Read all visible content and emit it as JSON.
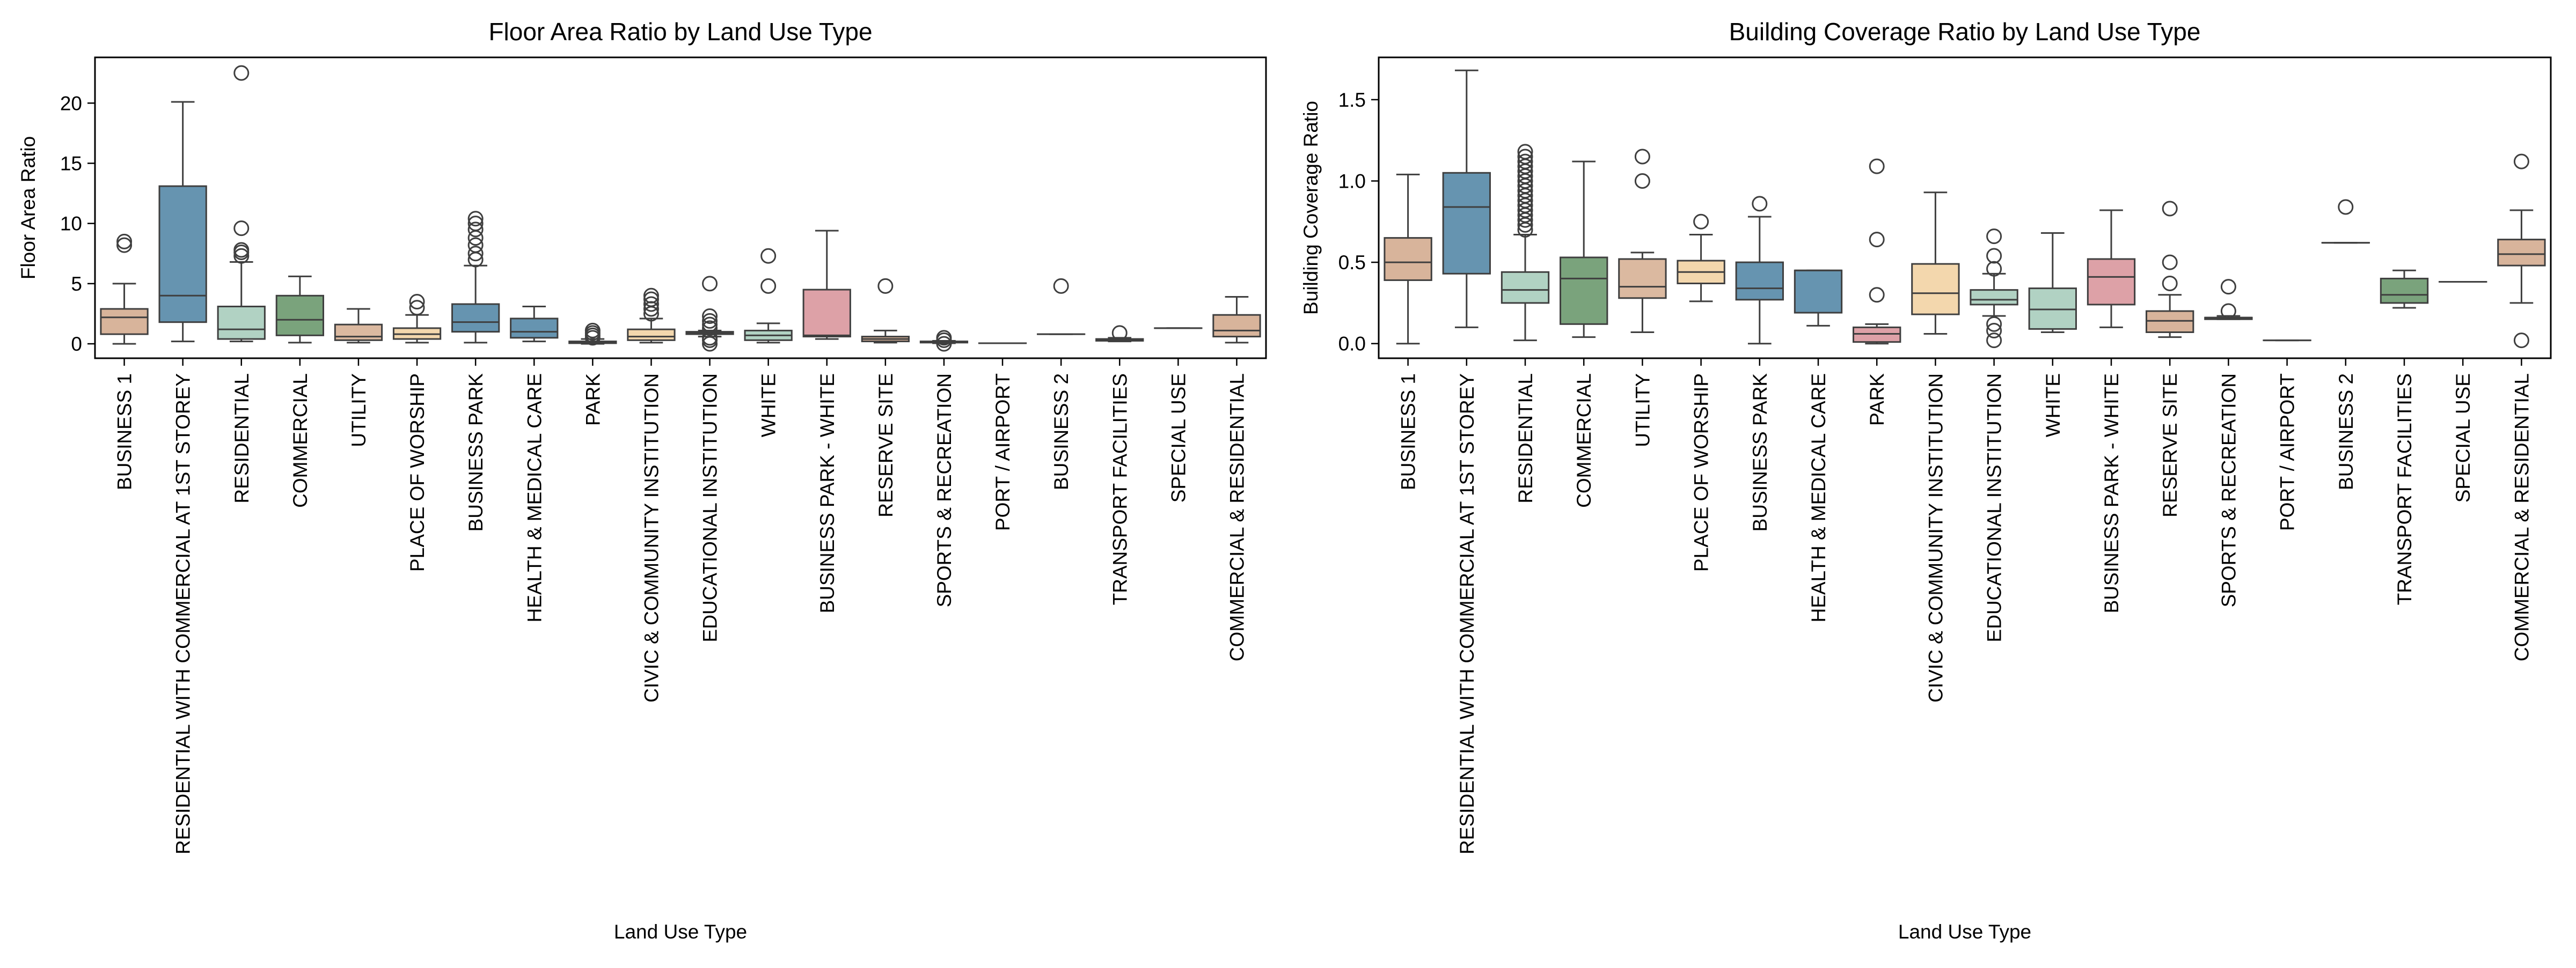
{
  "chart_data": [
    {
      "type": "box",
      "title": "Floor Area Ratio by Land Use Type",
      "xlabel": "Land Use Type",
      "ylabel": "Floor Area Ratio",
      "ylim": [
        -1.2,
        23.8
      ],
      "yticks": [
        0,
        5,
        10,
        15,
        20
      ],
      "grid": false,
      "categories": [
        "BUSINESS 1",
        "RESIDENTIAL WITH COMMERCIAL AT 1ST STOREY",
        "RESIDENTIAL",
        "COMMERCIAL",
        "UTILITY",
        "PLACE OF WORSHIP",
        "BUSINESS PARK",
        "HEALTH & MEDICAL CARE",
        "PARK",
        "CIVIC & COMMUNITY INSTITUTION",
        "EDUCATIONAL INSTITUTION",
        "WHITE",
        "BUSINESS PARK - WHITE",
        "RESERVE SITE",
        "SPORTS & RECREATION",
        "PORT / AIRPORT",
        "BUSINESS 2",
        "TRANSPORT FACILITIES",
        "SPECIAL USE",
        "COMMERCIAL & RESIDENTIAL"
      ],
      "colors": [
        "#d8b49b",
        "#6694b0",
        "#b1d2c3",
        "#7aa37c",
        "#dbb9a0",
        "#f3d7ad",
        "#6694b0",
        "#6694b0",
        "#dda1a7",
        "#f3d7ad",
        "#b1d2c3",
        "#b1d2c3",
        "#dda1a7",
        "#d8b49b",
        "#b1d2c3",
        "#6694b0",
        "#d8b49b",
        "#7aa37c",
        "#dbb9a0",
        "#d8b49b"
      ],
      "boxes": [
        {
          "whislo": 0.0,
          "q1": 0.8,
          "med": 2.2,
          "q3": 2.9,
          "whishi": 5.0,
          "fliers": [
            8.2,
            8.5
          ]
        },
        {
          "whislo": 0.2,
          "q1": 1.8,
          "med": 4.0,
          "q3": 13.1,
          "whishi": 20.1,
          "fliers": []
        },
        {
          "whislo": 0.2,
          "q1": 0.4,
          "med": 1.2,
          "q3": 3.1,
          "whishi": 6.8,
          "fliers": [
            7.3,
            7.6,
            7.8,
            9.6,
            22.5
          ]
        },
        {
          "whislo": 0.1,
          "q1": 0.7,
          "med": 2.0,
          "q3": 4.0,
          "whishi": 5.6,
          "fliers": []
        },
        {
          "whislo": 0.1,
          "q1": 0.3,
          "med": 0.6,
          "q3": 1.6,
          "whishi": 2.9,
          "fliers": []
        },
        {
          "whislo": 0.1,
          "q1": 0.4,
          "med": 0.8,
          "q3": 1.3,
          "whishi": 2.4,
          "fliers": [
            3.0,
            3.5
          ]
        },
        {
          "whislo": 0.1,
          "q1": 1.0,
          "med": 1.8,
          "q3": 3.3,
          "whishi": 6.5,
          "fliers": [
            7.0,
            7.5,
            8.2,
            8.8,
            9.5,
            10.0,
            10.4
          ]
        },
        {
          "whislo": 0.2,
          "q1": 0.5,
          "med": 1.0,
          "q3": 2.1,
          "whishi": 3.1,
          "fliers": []
        },
        {
          "whislo": 0.0,
          "q1": 0.05,
          "med": 0.1,
          "q3": 0.2,
          "whishi": 0.4,
          "fliers": [
            0.5,
            0.7,
            0.9,
            1.1
          ]
        },
        {
          "whislo": 0.1,
          "q1": 0.3,
          "med": 0.6,
          "q3": 1.2,
          "whishi": 2.1,
          "fliers": [
            2.5,
            2.9,
            3.3,
            3.7,
            4.0
          ]
        },
        {
          "whislo": 0.6,
          "q1": 0.8,
          "med": 0.9,
          "q3": 1.0,
          "whishi": 1.1,
          "fliers": [
            0.0,
            0.3,
            0.5,
            1.3,
            1.6,
            1.9,
            2.3,
            5.0
          ]
        },
        {
          "whislo": 0.1,
          "q1": 0.3,
          "med": 0.7,
          "q3": 1.1,
          "whishi": 1.7,
          "fliers": [
            4.8,
            7.3
          ]
        },
        {
          "whislo": 0.4,
          "q1": 0.6,
          "med": 0.7,
          "q3": 4.5,
          "whishi": 9.4,
          "fliers": []
        },
        {
          "whislo": 0.1,
          "q1": 0.2,
          "med": 0.4,
          "q3": 0.6,
          "whishi": 1.1,
          "fliers": [
            4.8
          ]
        },
        {
          "whislo": 0.05,
          "q1": 0.1,
          "med": 0.15,
          "q3": 0.2,
          "whishi": 0.25,
          "fliers": [
            0.0,
            0.3,
            0.5
          ]
        },
        {
          "whislo": 0.05,
          "q1": 0.05,
          "med": 0.05,
          "q3": 0.05,
          "whishi": 0.05,
          "fliers": []
        },
        {
          "whislo": 0.8,
          "q1": 0.8,
          "med": 0.8,
          "q3": 0.8,
          "whishi": 0.8,
          "fliers": [
            4.8
          ]
        },
        {
          "whislo": 0.2,
          "q1": 0.25,
          "med": 0.3,
          "q3": 0.4,
          "whishi": 0.5,
          "fliers": [
            0.9
          ]
        },
        {
          "whislo": 1.3,
          "q1": 1.3,
          "med": 1.3,
          "q3": 1.3,
          "whishi": 1.3,
          "fliers": []
        },
        {
          "whislo": 0.1,
          "q1": 0.6,
          "med": 1.1,
          "q3": 2.4,
          "whishi": 3.9,
          "fliers": []
        }
      ]
    },
    {
      "type": "box",
      "title": "Building Coverage Ratio by Land Use Type",
      "xlabel": "Land Use Type",
      "ylabel": "Building Coverage Ratio",
      "ylim": [
        -0.09,
        1.76
      ],
      "yticks": [
        0.0,
        0.5,
        1.0,
        1.5
      ],
      "grid": false,
      "categories": [
        "BUSINESS 1",
        "RESIDENTIAL WITH COMMERCIAL AT 1ST STOREY",
        "RESIDENTIAL",
        "COMMERCIAL",
        "UTILITY",
        "PLACE OF WORSHIP",
        "BUSINESS PARK",
        "HEALTH & MEDICAL CARE",
        "PARK",
        "CIVIC & COMMUNITY INSTITUTION",
        "EDUCATIONAL INSTITUTION",
        "WHITE",
        "BUSINESS PARK - WHITE",
        "RESERVE SITE",
        "SPORTS & RECREATION",
        "PORT / AIRPORT",
        "BUSINESS 2",
        "TRANSPORT FACILITIES",
        "SPECIAL USE",
        "COMMERCIAL & RESIDENTIAL"
      ],
      "colors": [
        "#d8b49b",
        "#6694b0",
        "#b1d2c3",
        "#7aa37c",
        "#dbb9a0",
        "#f3d7ad",
        "#6694b0",
        "#6694b0",
        "#dda1a7",
        "#f3d7ad",
        "#b1d2c3",
        "#b1d2c3",
        "#dda1a7",
        "#d8b49b",
        "#b1d2c3",
        "#6694b0",
        "#d8b49b",
        "#7aa37c",
        "#dbb9a0",
        "#d8b49b"
      ],
      "boxes": [
        {
          "whislo": 0.0,
          "q1": 0.39,
          "med": 0.5,
          "q3": 0.65,
          "whishi": 1.04,
          "fliers": []
        },
        {
          "whislo": 0.1,
          "q1": 0.43,
          "med": 0.84,
          "q3": 1.05,
          "whishi": 1.68,
          "fliers": []
        },
        {
          "whislo": 0.02,
          "q1": 0.25,
          "med": 0.33,
          "q3": 0.44,
          "whishi": 0.67,
          "fliers": [
            0.7,
            0.73,
            0.76,
            0.79,
            0.82,
            0.85,
            0.88,
            0.91,
            0.94,
            0.97,
            1.0,
            1.03,
            1.06,
            1.09,
            1.12,
            1.15,
            1.18
          ]
        },
        {
          "whislo": 0.04,
          "q1": 0.12,
          "med": 0.4,
          "q3": 0.53,
          "whishi": 1.12,
          "fliers": []
        },
        {
          "whislo": 0.07,
          "q1": 0.28,
          "med": 0.35,
          "q3": 0.52,
          "whishi": 0.56,
          "fliers": [
            1.0,
            1.15
          ]
        },
        {
          "whislo": 0.26,
          "q1": 0.37,
          "med": 0.44,
          "q3": 0.51,
          "whishi": 0.67,
          "fliers": [
            0.75
          ]
        },
        {
          "whislo": 0.0,
          "q1": 0.27,
          "med": 0.34,
          "q3": 0.5,
          "whishi": 0.78,
          "fliers": [
            0.86
          ]
        },
        {
          "whislo": 0.11,
          "q1": 0.19,
          "med": 0.45,
          "q3": 0.45,
          "whishi": 0.45,
          "fliers": []
        },
        {
          "whislo": 0.0,
          "q1": 0.01,
          "med": 0.06,
          "q3": 0.1,
          "whishi": 0.12,
          "fliers": [
            0.3,
            0.64,
            1.09
          ]
        },
        {
          "whislo": 0.06,
          "q1": 0.18,
          "med": 0.31,
          "q3": 0.49,
          "whishi": 0.93,
          "fliers": []
        },
        {
          "whislo": 0.17,
          "q1": 0.24,
          "med": 0.27,
          "q3": 0.33,
          "whishi": 0.43,
          "fliers": [
            0.02,
            0.08,
            0.12,
            0.46,
            0.54,
            0.66
          ]
        },
        {
          "whislo": 0.07,
          "q1": 0.09,
          "med": 0.21,
          "q3": 0.34,
          "whishi": 0.68,
          "fliers": []
        },
        {
          "whislo": 0.1,
          "q1": 0.24,
          "med": 0.41,
          "q3": 0.52,
          "whishi": 0.82,
          "fliers": []
        },
        {
          "whislo": 0.04,
          "q1": 0.07,
          "med": 0.14,
          "q3": 0.2,
          "whishi": 0.3,
          "fliers": [
            0.37,
            0.5,
            0.83
          ]
        },
        {
          "whislo": 0.15,
          "q1": 0.15,
          "med": 0.16,
          "q3": 0.16,
          "whishi": 0.17,
          "fliers": [
            0.2,
            0.35
          ]
        },
        {
          "whislo": 0.02,
          "q1": 0.02,
          "med": 0.02,
          "q3": 0.02,
          "whishi": 0.02,
          "fliers": []
        },
        {
          "whislo": 0.62,
          "q1": 0.62,
          "med": 0.62,
          "q3": 0.62,
          "whishi": 0.62,
          "fliers": [
            0.84
          ]
        },
        {
          "whislo": 0.22,
          "q1": 0.25,
          "med": 0.3,
          "q3": 0.4,
          "whishi": 0.45,
          "fliers": []
        },
        {
          "whislo": 0.38,
          "q1": 0.38,
          "med": 0.38,
          "q3": 0.38,
          "whishi": 0.38,
          "fliers": []
        },
        {
          "whislo": 0.25,
          "q1": 0.48,
          "med": 0.55,
          "q3": 0.64,
          "whishi": 0.82,
          "fliers": [
            0.02,
            1.12
          ]
        }
      ]
    }
  ]
}
